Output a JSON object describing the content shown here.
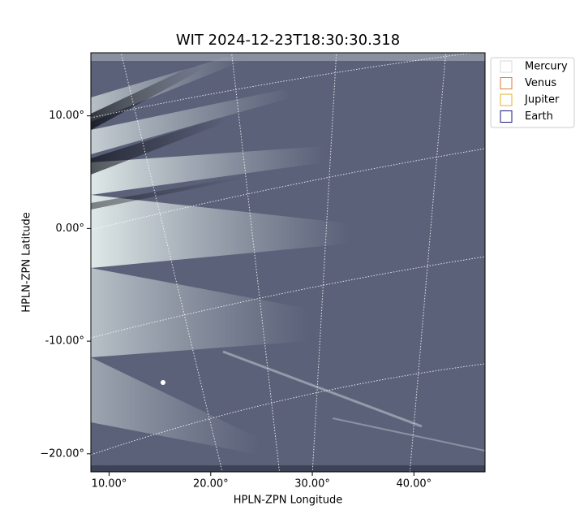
{
  "chart_data": {
    "type": "image",
    "title": "WIT 2024-12-23T18:30:30.318",
    "x_label": "HPLN-ZPN Longitude",
    "y_label": "HPLN-ZPN Latitude",
    "xlim": [
      8.2,
      47.0
    ],
    "ylim": [
      -21.6,
      15.6
    ],
    "xticks": [
      {
        "value": 10,
        "label": "10.00°"
      },
      {
        "value": 20,
        "label": "20.00°"
      },
      {
        "value": 30,
        "label": "30.00°"
      },
      {
        "value": 40,
        "label": "40.00°"
      }
    ],
    "yticks": [
      {
        "value": 10,
        "label": "10.00°"
      },
      {
        "value": 0,
        "label": "0.00°"
      },
      {
        "value": -10,
        "label": "-10.00°"
      },
      {
        "value": -20,
        "label": "−20.00°"
      }
    ],
    "legend_position": "outside-upper-right",
    "series": [
      {
        "name": "Mercury",
        "color": "#d9d9d9"
      },
      {
        "name": "Venus",
        "color": "#e07b39"
      },
      {
        "name": "Jupiter",
        "color": "#e8b020"
      },
      {
        "name": "Earth",
        "color": "#1a1a80"
      }
    ]
  }
}
